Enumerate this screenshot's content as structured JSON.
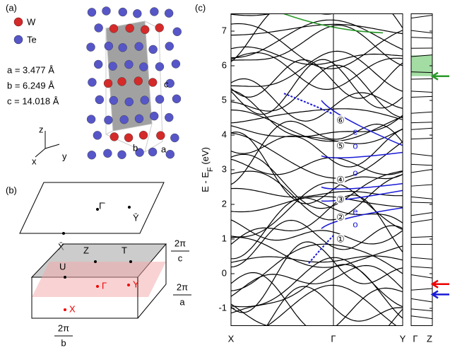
{
  "panels": {
    "a": "(a)",
    "b": "(b)",
    "c": "(c)"
  },
  "legend": [
    {
      "label": "W",
      "color": "#d42a2a"
    },
    {
      "label": "Te",
      "color": "#5656c8"
    }
  ],
  "lattice": [
    "a = 3.477 Å",
    "b = 6.249 Å",
    "c = 14.018 Å"
  ],
  "crystal_axes": [
    "z",
    "x",
    "y"
  ],
  "crystal_edge_labels": [
    "c",
    "b",
    "a"
  ],
  "surface_bz": {
    "points": [
      "Γ̄",
      "Ȳ",
      "X̄"
    ]
  },
  "bulk_bz": {
    "points": [
      "Z",
      "T",
      "U",
      "Γ",
      "Y",
      "X"
    ],
    "reciprocal": [
      {
        "num": "2π",
        "den": "c"
      },
      {
        "num": "2π",
        "den": "a"
      },
      {
        "num": "2π",
        "den": "b"
      }
    ]
  },
  "band_plot": {
    "ylim": [
      -1.5,
      7.5
    ],
    "yticks": [
      -1,
      0,
      1,
      2,
      3,
      4,
      5,
      6,
      7
    ],
    "ylabel": "E - E",
    "ylabel_sub": "F",
    "ylabel_unit": " (eV)",
    "k_labels": [
      "X",
      "Γ",
      "Y",
      "Γ",
      "Z"
    ],
    "band_labels": [
      "⑥",
      "⑤",
      "④",
      "③",
      "②",
      "①"
    ],
    "parity_labels": [
      "e",
      "o",
      "o",
      "e",
      "o"
    ]
  }
}
